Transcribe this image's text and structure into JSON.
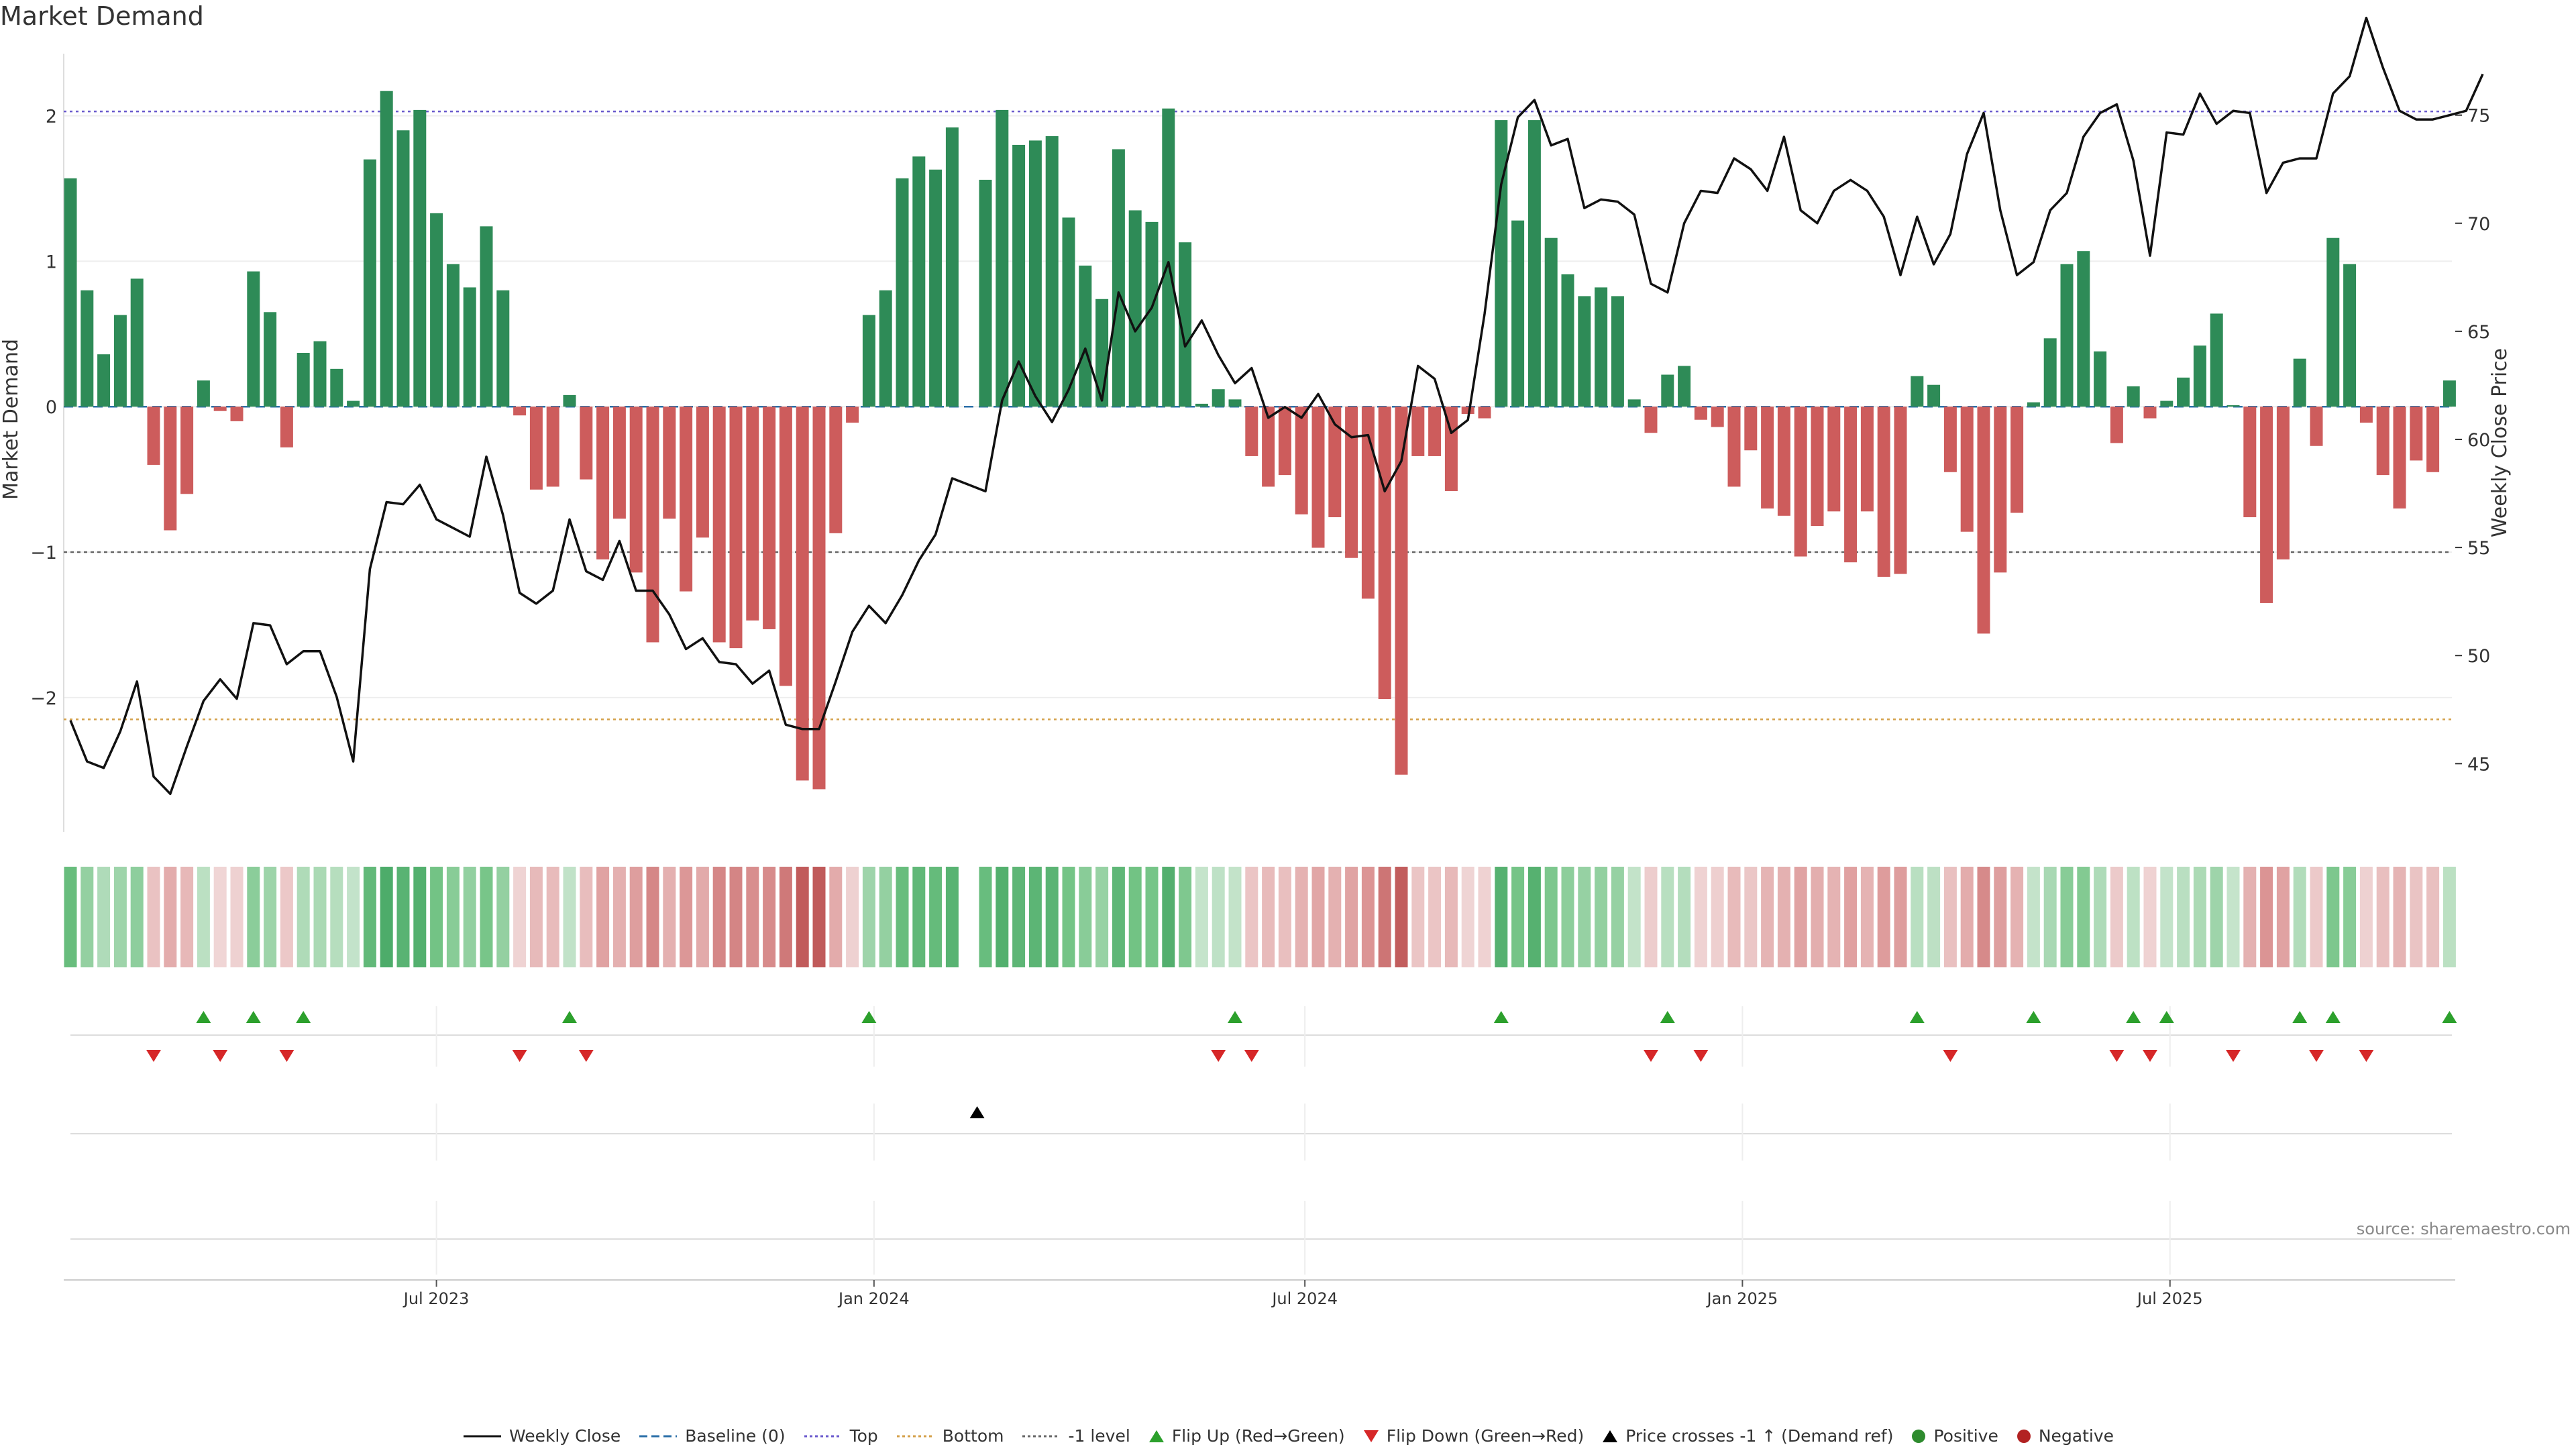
{
  "title": "Market Demand",
  "source_note": "source: sharemaestro.com",
  "colors": {
    "positive": "#2e8b57",
    "negative": "#cd5c5c",
    "price": "#111111",
    "top_line": "#6a5acd",
    "bottom_line": "#d4a04a",
    "minus_one_line": "#666666",
    "baseline": "#2b6fa8",
    "flip_up": "#2ca02c",
    "flip_down": "#d62728",
    "cross_marker": "#000000"
  },
  "chart_data": {
    "type": "bar",
    "title": "Market Demand",
    "ylabel": "Market Demand",
    "y2label": "Weekly Close Price",
    "ylim": [
      -2.9,
      2.45
    ],
    "y2lim": [
      42,
      78
    ],
    "yticks": [
      -2,
      -1,
      0,
      1,
      2
    ],
    "y2ticks": [
      45,
      50,
      55,
      60,
      65,
      70,
      75
    ],
    "x_ticks": [
      {
        "label": "Jul 2023",
        "index": 22
      },
      {
        "label": "Jan 2024",
        "index": 48.3
      },
      {
        "label": "Jul 2024",
        "index": 74.2
      },
      {
        "label": "Jan 2025",
        "index": 100.5
      },
      {
        "label": "Jul 2025",
        "index": 126.2
      }
    ],
    "reference_lines": {
      "top": 2.03,
      "bottom": -2.15,
      "minus_one": -1.0,
      "baseline": 0
    },
    "demand": [
      1.57,
      0.8,
      0.36,
      0.63,
      0.88,
      -0.4,
      -0.85,
      -0.6,
      0.18,
      -0.03,
      -0.1,
      0.93,
      0.65,
      -0.28,
      0.37,
      0.45,
      0.26,
      0.04,
      1.7,
      2.17,
      1.9,
      2.04,
      1.33,
      0.98,
      0.82,
      1.24,
      0.8,
      -0.06,
      -0.57,
      -0.55,
      0.08,
      -0.5,
      -1.05,
      -0.77,
      -1.14,
      -1.62,
      -0.77,
      -1.27,
      -0.9,
      -1.62,
      -1.66,
      -1.47,
      -1.53,
      -1.92,
      -2.57,
      -2.63,
      -0.87,
      -0.11,
      0.63,
      0.8,
      1.57,
      1.72,
      1.63,
      1.92,
      null,
      1.56,
      2.04,
      1.8,
      1.83,
      1.86,
      1.3,
      0.97,
      0.74,
      1.77,
      1.35,
      1.27,
      2.05,
      1.13,
      0.02,
      0.12,
      0.05,
      -0.34,
      -0.55,
      -0.47,
      -0.74,
      -0.97,
      -0.76,
      -1.04,
      -1.32,
      -2.01,
      -2.53,
      -0.34,
      -0.34,
      -0.58,
      -0.05,
      -0.08,
      1.97,
      1.28,
      1.97,
      1.16,
      0.91,
      0.76,
      0.82,
      0.76,
      0.05,
      -0.18,
      0.22,
      0.28,
      -0.09,
      -0.14,
      -0.55,
      -0.3,
      -0.7,
      -0.75,
      -1.03,
      -0.82,
      -0.72,
      -1.07,
      -0.72,
      -1.17,
      -1.15,
      0.21,
      0.15,
      -0.45,
      -0.86,
      -1.56,
      -1.14,
      -0.73,
      0.03,
      0.47,
      0.98,
      1.07,
      0.38,
      -0.25,
      0.14,
      -0.08,
      0.04,
      0.2,
      0.42,
      0.64,
      0.01,
      -0.76,
      -1.35,
      -1.05,
      0.33,
      -0.27,
      1.16,
      0.98,
      -0.11,
      -0.47,
      -0.7,
      -0.37,
      -0.45,
      0.18
    ],
    "price": [
      47.0,
      45.1,
      44.8,
      46.5,
      48.8,
      44.4,
      43.6,
      45.8,
      47.9,
      48.9,
      48.0,
      51.5,
      51.4,
      49.6,
      50.2,
      50.2,
      48.1,
      45.1,
      54.0,
      57.1,
      57.0,
      57.9,
      56.3,
      55.9,
      55.5,
      59.2,
      56.5,
      52.9,
      52.4,
      53.0,
      56.3,
      53.9,
      53.5,
      55.3,
      53.0,
      53.0,
      51.9,
      50.3,
      50.8,
      49.7,
      49.6,
      48.7,
      49.3,
      46.8,
      46.6,
      46.6,
      48.8,
      51.1,
      52.3,
      51.5,
      52.8,
      54.4,
      55.6,
      58.2,
      57.9,
      57.6,
      61.8,
      63.6,
      62.0,
      60.8,
      62.3,
      64.2,
      61.8,
      66.8,
      65.0,
      66.1,
      68.2,
      64.3,
      65.5,
      63.9,
      62.6,
      63.3,
      61.0,
      61.5,
      61.0,
      62.1,
      60.7,
      60.1,
      60.2,
      57.6,
      59.0,
      63.4,
      62.8,
      60.3,
      60.9,
      65.8,
      71.8,
      74.9,
      75.7,
      73.6,
      73.9,
      70.7,
      71.1,
      71.0,
      70.4,
      67.2,
      66.8,
      70.0,
      71.5,
      71.4,
      73.0,
      72.5,
      71.5,
      74.0,
      70.6,
      70.0,
      71.5,
      72.0,
      71.5,
      70.3,
      67.6,
      70.3,
      68.1,
      69.5,
      73.2,
      75.1,
      70.6,
      67.6,
      68.2,
      70.6,
      71.4,
      74.0,
      75.1,
      75.5,
      72.9,
      68.5,
      74.2,
      74.1,
      76.0,
      74.6,
      75.2,
      75.1,
      71.4,
      72.8,
      73.0,
      73.0,
      76.0,
      76.8,
      79.5,
      77.2,
      75.2,
      74.8,
      74.8,
      75.0,
      75.2,
      76.9
    ],
    "flip_up_indices": [
      8,
      11,
      14,
      30,
      48,
      70,
      86,
      96,
      111,
      118,
      124,
      126,
      134,
      136,
      143
    ],
    "flip_down_indices": [
      5,
      9,
      13,
      27,
      31,
      69,
      71,
      95,
      98,
      113,
      123,
      125,
      130,
      135,
      138
    ],
    "cross_indices": [
      54.5
    ]
  },
  "legend": [
    {
      "label": "Weekly Close",
      "icon": "solid-line"
    },
    {
      "label": "Baseline (0)",
      "icon": "dashed-line"
    },
    {
      "label": "Top",
      "icon": "dotted-line"
    },
    {
      "label": "Bottom",
      "icon": "dotted-line"
    },
    {
      "label": "-1 level",
      "icon": "dotted-line"
    },
    {
      "label": "Flip Up (Red→Green)",
      "icon": "triangle-up"
    },
    {
      "label": "Flip Down (Green→Red)",
      "icon": "triangle-down"
    },
    {
      "label": "Price crosses -1 ↑ (Demand ref)",
      "icon": "triangle-up"
    },
    {
      "label": "Positive",
      "icon": "circle"
    },
    {
      "label": "Negative",
      "icon": "circle"
    }
  ]
}
